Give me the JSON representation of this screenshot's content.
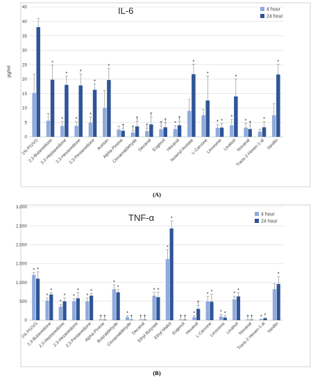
{
  "colors": {
    "h4": "#8faadc",
    "h24": "#2f5597"
  },
  "chart_data": [
    {
      "type": "bar",
      "panel_label": "(A)",
      "title": "IL-6",
      "ylabel": "pg/ml",
      "ylim": [
        0,
        45
      ],
      "yticks": [
        0,
        5,
        10,
        15,
        20,
        25,
        30,
        35,
        40,
        45
      ],
      "ytick_labels": [
        "0",
        "5",
        "10",
        "15",
        "20",
        "25",
        "30",
        "35",
        "40",
        "45"
      ],
      "legend_position": "top-right",
      "categories": [
        "1% PG/VG",
        "2,3-Butanedione",
        "2,3-Heptanedione",
        "2,3-Hexanedione",
        "2,3-Pentanedione",
        "Acetoin",
        "Alpha-Pinene",
        "Cinnamaldehyde",
        "Decanal",
        "Eugenol",
        "Hexanal",
        "Isoamyl Acetate",
        "L-Carvone",
        "Limonene",
        "Linalool",
        "Nonanal",
        "Trans-2-Hexen-1-al",
        "Vanillin"
      ],
      "series": [
        {
          "name": "4 hour",
          "values": [
            15.2,
            5.6,
            3.8,
            3.8,
            4.9,
            10.0,
            2.5,
            1.5,
            2.0,
            2.6,
            2.7,
            9.0,
            7.5,
            3.1,
            4.0,
            3.2,
            1.8,
            7.5
          ],
          "errors": [
            6.5,
            2.5,
            1.5,
            1.5,
            2.0,
            6.0,
            1.2,
            0.8,
            1.0,
            1.2,
            1.2,
            4.0,
            2.0,
            1.2,
            2.0,
            1.5,
            0.8,
            4.0
          ],
          "marks": [
            "",
            "",
            "*",
            "*",
            "*",
            "",
            "",
            "†",
            "†",
            "†",
            "*",
            "",
            "",
            "*",
            "*",
            "*",
            "",
            ""
          ]
        },
        {
          "name": "24 hour",
          "values": [
            38.0,
            19.8,
            18.0,
            17.8,
            16.3,
            19.7,
            2.1,
            3.6,
            4.3,
            3.3,
            4.0,
            21.7,
            12.6,
            3.2,
            14.0,
            2.7,
            3.3,
            21.6
          ],
          "errors": [
            3.0,
            5.0,
            3.0,
            4.0,
            2.0,
            4.0,
            0.8,
            1.8,
            2.5,
            1.5,
            1.5,
            3.5,
            8.5,
            1.5,
            6.0,
            1.2,
            2.0,
            3.5
          ],
          "marks": [
            "",
            "*",
            "*",
            "*",
            "*",
            "*",
            "†",
            "†",
            "†",
            "†",
            "†",
            "*",
            "*",
            "*",
            "*",
            "†",
            "*",
            "*"
          ]
        }
      ]
    },
    {
      "type": "bar",
      "panel_label": "(B)",
      "title": "TNF-α",
      "ylabel": "",
      "ylim": [
        0,
        3000
      ],
      "yticks": [
        0,
        500,
        1000,
        1500,
        2000,
        2500,
        3000
      ],
      "ytick_labels": [
        "0",
        "500",
        "1,000",
        "1,500",
        "2,000",
        "2,500",
        "3,000"
      ],
      "legend_position": "top-right",
      "categories": [
        "1% PG/VG",
        "2,3-Butanedione",
        "2,3-Heptanedione",
        "2,3-Hexanedione",
        "2,3-Pentanedione",
        "Alpha-Pinene",
        "Butyraldehyde",
        "Cinnamaldehyde",
        "Decanal",
        "Ethyl Butyrate",
        "Ethyl Maltol",
        "Eugenol",
        "Hexanal",
        "L-Carvone",
        "Limonene",
        "Linalool",
        "Nonanal",
        "Trans-2-Hexen-1-al",
        "Vanillin"
      ],
      "series": [
        {
          "name": "4 hour",
          "values": [
            1200,
            520,
            360,
            500,
            500,
            10,
            820,
            80,
            10,
            650,
            1620,
            10,
            80,
            500,
            100,
            550,
            10,
            20,
            820
          ],
          "errors": [
            60,
            70,
            60,
            70,
            90,
            5,
            120,
            40,
            5,
            90,
            250,
            5,
            40,
            130,
            60,
            90,
            5,
            10,
            150
          ],
          "marks": [
            "*",
            "*",
            "*",
            "*",
            "*",
            "†",
            "*",
            "*",
            "†",
            "*",
            "*",
            "†",
            "*",
            "*",
            "*",
            "*",
            "†",
            "*",
            ""
          ]
        },
        {
          "name": "24 hour",
          "values": [
            1100,
            680,
            500,
            580,
            650,
            10,
            740,
            10,
            10,
            610,
            2430,
            10,
            300,
            490,
            70,
            630,
            10,
            50,
            960
          ],
          "errors": [
            180,
            50,
            90,
            150,
            60,
            5,
            70,
            5,
            5,
            130,
            200,
            5,
            100,
            200,
            50,
            100,
            5,
            15,
            200
          ],
          "marks": [
            "*",
            "*",
            "*",
            "*",
            "*",
            "†",
            "*",
            "†",
            "†",
            "*",
            "*",
            "†",
            "†",
            "*",
            "*",
            "*",
            "†",
            "*",
            "*"
          ]
        }
      ]
    }
  ]
}
